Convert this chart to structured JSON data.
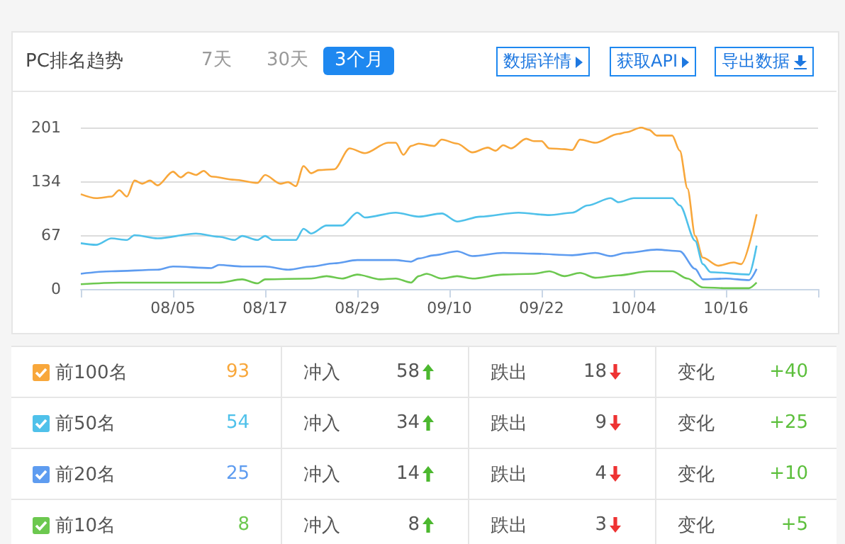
{
  "chart_data": [
    {
      "type": "line",
      "title": "PC排名趋势",
      "annotations": [
        "7天",
        "30天",
        "3个月",
        "数据详情",
        "获取API",
        "导出数据"
      ],
      "xlim": [
        "--07-24",
        "--10-28"
      ],
      "xticks": [
        {
          "value": "--07-24",
          "label": null
        },
        {
          "value": "--08-05",
          "label": "08/05"
        },
        {
          "value": "--08-17",
          "label": "08/17"
        },
        {
          "value": "--08-29",
          "label": "08/29"
        },
        {
          "value": "--09-10",
          "label": "09/10"
        },
        {
          "value": "--09-22",
          "label": "09/22"
        },
        {
          "value": "--10-04",
          "label": "10/04"
        },
        {
          "value": "--10-16",
          "label": "10/16"
        },
        {
          "value": "--10-28",
          "label": null
        }
      ],
      "ylim": [
        0,
        201
      ],
      "yticks": [
        0,
        67,
        134,
        201
      ],
      "grid": "y",
      "series": [
        {
          "color": "#f8a73b",
          "x": [
            "--07-24",
            "--07-26",
            "--07-28",
            "--07-29",
            "--07-30",
            "--07-31",
            "--08-01",
            "--08-02",
            "--08-03",
            "--08-05",
            "--08-06",
            "--08-07",
            "--08-08",
            "--08-09",
            "--08-10",
            "--08-13",
            "--08-16",
            "--08-17",
            "--08-19",
            "--08-20",
            "--08-21",
            "--08-22",
            "--08-23",
            "--08-24",
            "--08-26",
            "--08-28",
            "--08-30",
            "--09-02",
            "--09-03",
            "--09-04",
            "--09-05",
            "--09-06",
            "--09-08",
            "--09-09",
            "--09-11",
            "--09-13",
            "--09-15",
            "--09-16",
            "--09-17",
            "--09-18",
            "--09-20",
            "--09-21",
            "--09-22",
            "--09-23",
            "--09-25",
            "--09-26",
            "--09-27",
            "--09-29",
            "--10-02",
            "--10-03",
            "--10-05",
            "--10-06",
            "--10-07",
            "--10-09",
            "--10-10",
            "--10-11",
            "--10-12",
            "--10-13",
            "--10-15",
            "--10-17",
            "--10-18",
            "--10-20"
          ],
          "values": [
            118,
            113,
            115,
            123,
            115,
            135,
            131,
            135,
            129,
            146,
            139,
            145,
            142,
            147,
            140,
            136,
            132,
            142,
            131,
            133,
            128,
            153,
            144,
            148,
            149,
            175,
            169,
            182,
            182,
            167,
            178,
            181,
            178,
            186,
            181,
            170,
            176,
            172,
            179,
            175,
            187,
            184,
            184,
            175,
            174,
            173,
            186,
            182,
            193,
            195,
            201,
            198,
            191,
            191,
            172,
            125,
            66,
            39,
            29,
            33,
            31,
            93
          ]
        },
        {
          "color": "#4fc1ea",
          "x": [
            "--07-24",
            "--07-26",
            "--07-28",
            "--07-30",
            "--07-31",
            "--08-03",
            "--08-08",
            "--08-11",
            "--08-13",
            "--08-14",
            "--08-16",
            "--08-17",
            "--08-18",
            "--08-21",
            "--08-22",
            "--08-23",
            "--08-25",
            "--08-27",
            "--08-29",
            "--08-30",
            "--09-03",
            "--09-06",
            "--09-09",
            "--09-11",
            "--09-14",
            "--09-19",
            "--09-23",
            "--09-26",
            "--09-28",
            "--10-01",
            "--10-02",
            "--10-04",
            "--10-09",
            "--10-10",
            "--10-12",
            "--10-13",
            "--10-14",
            "--10-19",
            "--10-20"
          ],
          "values": [
            57,
            55,
            63,
            61,
            67,
            63,
            69,
            65,
            61,
            66,
            61,
            66,
            61,
            61,
            75,
            69,
            79,
            79,
            95,
            89,
            95,
            90,
            94,
            84,
            90,
            95,
            92,
            95,
            104,
            113,
            108,
            113,
            113,
            104,
            60,
            31,
            21,
            18,
            54
          ]
        },
        {
          "color": "#5e9cf0",
          "x": [
            "--07-24",
            "--07-28",
            "--08-03",
            "--08-05",
            "--08-10",
            "--08-11",
            "--08-14",
            "--08-17",
            "--08-20",
            "--08-23",
            "--08-26",
            "--08-29",
            "--09-03",
            "--09-05",
            "--09-06",
            "--09-08",
            "--09-11",
            "--09-13",
            "--09-17",
            "--09-21",
            "--09-26",
            "--09-29",
            "--10-01",
            "--10-03",
            "--10-07",
            "--10-10",
            "--10-12",
            "--10-13",
            "--10-16",
            "--10-19",
            "--10-20"
          ],
          "values": [
            19,
            22,
            24,
            28,
            26,
            30,
            28,
            28,
            24,
            28,
            32,
            36,
            36,
            34,
            38,
            42,
            47,
            41,
            45,
            44,
            42,
            45,
            41,
            45,
            49,
            47,
            25,
            12,
            13,
            11,
            25
          ]
        },
        {
          "color": "#6cc84f",
          "x": [
            "--07-24",
            "--07-29",
            "--08-05",
            "--08-11",
            "--08-14",
            "--08-16",
            "--08-17",
            "--08-23",
            "--08-25",
            "--08-27",
            "--08-29",
            "--09-01",
            "--09-03",
            "--09-05",
            "--09-06",
            "--09-07",
            "--09-09",
            "--09-11",
            "--09-13",
            "--09-17",
            "--09-21",
            "--09-23",
            "--09-25",
            "--09-27",
            "--09-29",
            "--10-02",
            "--10-06",
            "--10-09",
            "--10-11",
            "--10-13",
            "--10-16",
            "--10-19",
            "--10-20"
          ],
          "values": [
            6,
            8,
            8,
            8,
            12,
            7,
            12,
            13,
            16,
            13,
            18,
            12,
            13,
            8,
            16,
            19,
            13,
            16,
            13,
            18,
            19,
            22,
            16,
            20,
            14,
            17,
            22,
            22,
            13,
            2,
            1,
            1,
            8
          ]
        }
      ]
    },
    {
      "type": "other",
      "data_labels": true,
      "categories": [
        "前100名",
        "前50名",
        "前20名",
        "前10名"
      ],
      "colors": [
        "#f8a73b",
        "#4fc1ea",
        "#5e9cf0",
        "#6cc84f"
      ],
      "series": [
        {
          "values": [
            93,
            54,
            25,
            8
          ]
        },
        {
          "name": "冲入",
          "values": [
            58,
            34,
            14,
            8
          ]
        },
        {
          "name": "跌出",
          "values": [
            18,
            9,
            4,
            3
          ]
        },
        {
          "name": "变化",
          "values": [
            40,
            25,
            10,
            5
          ],
          "value_labels": [
            "+40",
            "+25",
            "+10",
            "+5"
          ]
        }
      ]
    }
  ]
}
